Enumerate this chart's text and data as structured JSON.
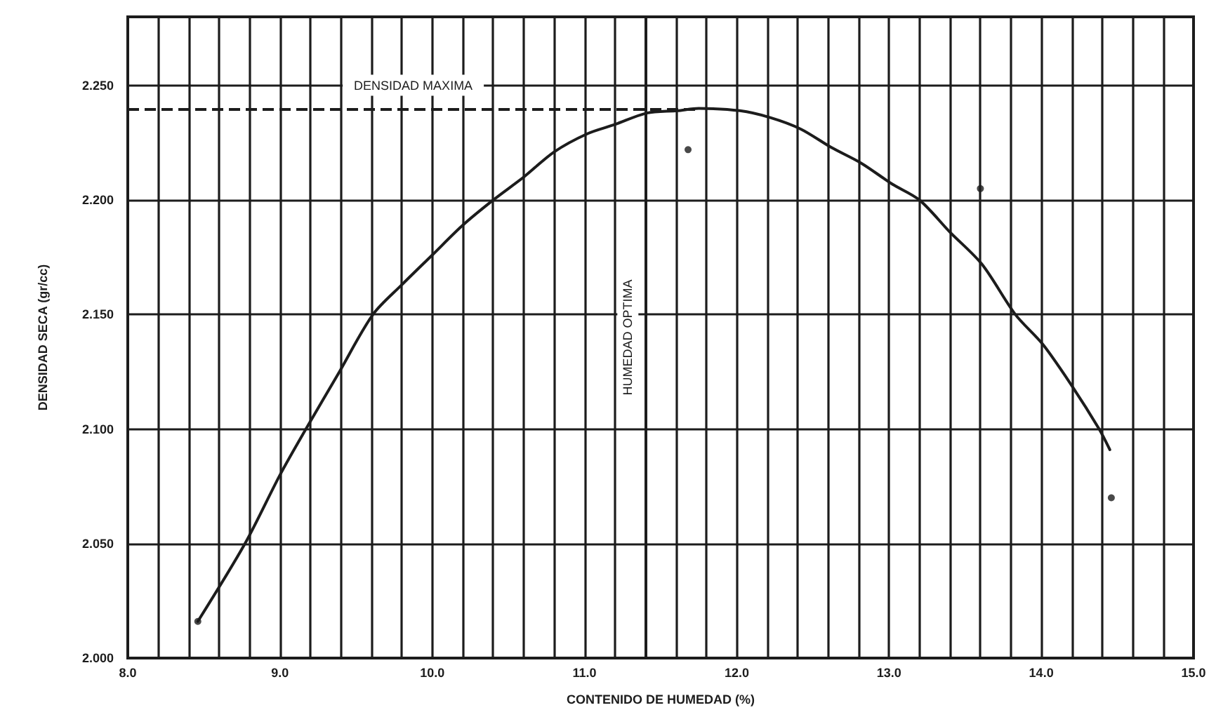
{
  "chart_data": {
    "type": "scatter",
    "xlabel": "CONTENIDO DE HUMEDAD (%)",
    "ylabel": "DENSIDAD SECA (gr/cc)",
    "xlim": [
      8,
      15
    ],
    "ylim": [
      2,
      2.28
    ],
    "xticks": [
      {
        "value": 8,
        "label": "8.0"
      },
      {
        "value": 8.2,
        "label": null
      },
      {
        "value": 8.4,
        "label": null
      },
      {
        "value": 8.6,
        "label": null
      },
      {
        "value": 8.8,
        "label": null
      },
      {
        "value": 9,
        "label": "9.0"
      },
      {
        "value": 9.2,
        "label": null
      },
      {
        "value": 9.4,
        "label": null
      },
      {
        "value": 9.6,
        "label": null
      },
      {
        "value": 9.8,
        "label": null
      },
      {
        "value": 10,
        "label": "10.0"
      },
      {
        "value": 10.2,
        "label": null
      },
      {
        "value": 10.4,
        "label": null
      },
      {
        "value": 10.6,
        "label": null
      },
      {
        "value": 10.8,
        "label": null
      },
      {
        "value": 11,
        "label": "11.0"
      },
      {
        "value": 11.2,
        "label": null
      },
      {
        "value": 11.4,
        "label": null
      },
      {
        "value": 11.6,
        "label": null
      },
      {
        "value": 11.8,
        "label": null
      },
      {
        "value": 12,
        "label": "12.0"
      },
      {
        "value": 12.2,
        "label": null
      },
      {
        "value": 12.4,
        "label": null
      },
      {
        "value": 12.6,
        "label": null
      },
      {
        "value": 12.8,
        "label": null
      },
      {
        "value": 13,
        "label": "13.0"
      },
      {
        "value": 13.2,
        "label": null
      },
      {
        "value": 13.4,
        "label": null
      },
      {
        "value": 13.6,
        "label": null
      },
      {
        "value": 13.8,
        "label": null
      },
      {
        "value": 14,
        "label": "14.0"
      },
      {
        "value": 14.2,
        "label": null
      },
      {
        "value": 14.4,
        "label": null
      },
      {
        "value": 14.6,
        "label": null
      },
      {
        "value": 14.8,
        "label": null
      },
      {
        "value": 15,
        "label": "15.0"
      }
    ],
    "yticks": [
      {
        "value": 2,
        "label": "2.000"
      },
      {
        "value": 2.05,
        "label": "2.050"
      },
      {
        "value": 2.1,
        "label": "2.100"
      },
      {
        "value": 2.15,
        "label": "2.150"
      },
      {
        "value": 2.2,
        "label": "2.200"
      },
      {
        "value": 2.25,
        "label": "2.250"
      }
    ],
    "grid": true,
    "series": [
      {
        "type": "scatter",
        "color": "#1c1c1c",
        "marker": "circle",
        "x": [
          8.46,
          11.68,
          13.6,
          14.46
        ],
        "values": [
          2.016,
          2.222,
          2.205,
          2.07
        ]
      },
      {
        "type": "line",
        "color": "#1c1c1c",
        "marker": "none",
        "line_style": "solid",
        "x": [
          8.46,
          8.77,
          9,
          9.17,
          9.39,
          9.61,
          9.8,
          10,
          10.2,
          10.4,
          10.6,
          10.8,
          11.02,
          11.2,
          11.41,
          11.61,
          11.75,
          12.02,
          12.22,
          12.42,
          12.62,
          12.82,
          13.02,
          13.2,
          13.4,
          13.61,
          13.83,
          14.01,
          14.2,
          14.38,
          14.45
        ],
        "values": [
          2.016,
          2.05,
          2.08,
          2.1,
          2.125,
          2.15,
          2.163,
          2.176,
          2.189,
          2.2,
          2.21,
          2.221,
          2.229,
          2.233,
          2.238,
          2.239,
          2.24,
          2.239,
          2.236,
          2.231,
          2.223,
          2.216,
          2.207,
          2.2,
          2.186,
          2.172,
          2.15,
          2.137,
          2.119,
          2.1,
          2.091
        ]
      }
    ],
    "ref_lines": [
      {
        "axis": "y",
        "value": 2.24,
        "label": "DENSIDAD MAXIMA",
        "line_style": "dashed",
        "color": "#1c1c1c"
      },
      {
        "axis": "x",
        "value": 11.4,
        "label": "HUMEDAD OPTIMA",
        "color": "#1c1c1c"
      }
    ]
  }
}
